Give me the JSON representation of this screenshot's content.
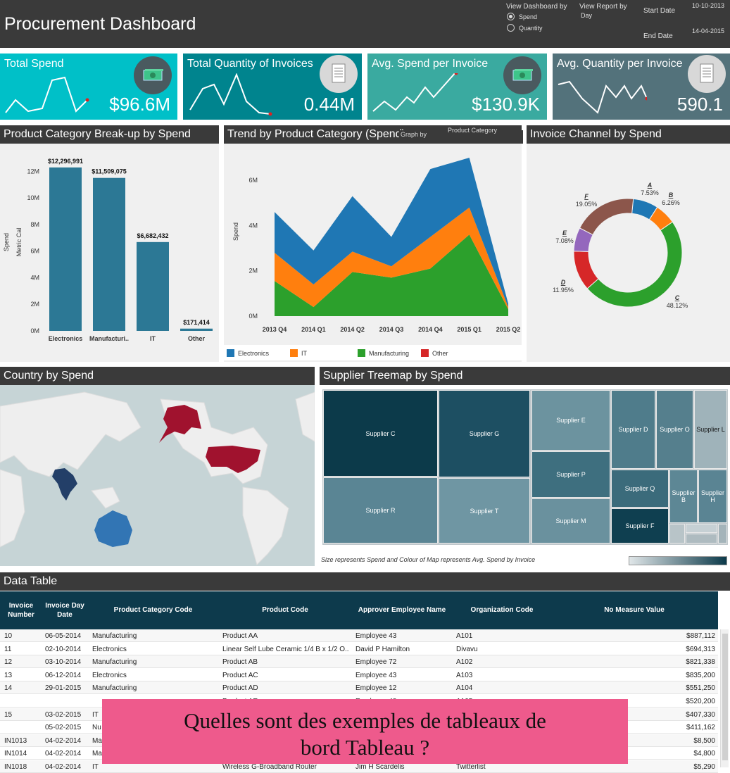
{
  "header": {
    "title": "Procurement Dashboard",
    "view_dashboard_label": "View Dashboard by",
    "option_spend": "Spend",
    "option_quantity": "Quantity",
    "view_report_label": "View Report by",
    "view_report_value": "Day",
    "start_date_label": "Start Date",
    "start_date_value": "10-10-2013",
    "end_date_label": "End Date",
    "end_date_value": "14-04-2015"
  },
  "kpis": [
    {
      "title": "Total Spend",
      "value": "$96.6M",
      "color": "#00c0c8",
      "icon": "money-icon"
    },
    {
      "title": "Total Quantity of Invoices",
      "value": "0.44M",
      "color": "#00848e",
      "icon": "invoice-icon"
    },
    {
      "title": "Avg. Spend per Invoice",
      "value": "$130.9K",
      "color": "#3aaaa0",
      "icon": "money-icon"
    },
    {
      "title": "Avg. Quantity per Invoice",
      "value": "590.1",
      "color": "#53727b",
      "icon": "invoice-icon"
    }
  ],
  "sections": {
    "category": "Product Category Break-up by Spend",
    "trend": "Trend by Product Category (Spend)",
    "trend_graph_by": "Graph by",
    "trend_graph_value": "Product Category",
    "channel": "Invoice Channel by Spend",
    "country": "Country by Spend",
    "supplier": "Supplier Treemap by Spend",
    "supplier_note": "Size represents Spend and Colour of Map represents Avg. Spend by Invoice",
    "data_table": "Data Table"
  },
  "chart_data": [
    {
      "type": "bar",
      "ylabel": "Spend",
      "ylabel2": "Metric Cal",
      "categories": [
        "Electronics",
        "Manufacturi..",
        "IT",
        "Other"
      ],
      "values": [
        12296991,
        11509075,
        6682432,
        171414
      ],
      "value_labels": [
        "$12,296,991",
        "$11,509,075",
        "$6,682,432",
        "$171,414"
      ],
      "yticks": [
        "0M",
        "2M",
        "4M",
        "6M",
        "8M",
        "10M",
        "12M"
      ],
      "ylim": [
        0,
        12500000
      ],
      "color": "#2c7895"
    },
    {
      "type": "area",
      "ylabel": "Spend",
      "categories": [
        "2013 Q4",
        "2014 Q1",
        "2014 Q2",
        "2014 Q3",
        "2014 Q4",
        "2015 Q1",
        "2015 Q2"
      ],
      "yticks": [
        "0M",
        "2M",
        "4M",
        "6M"
      ],
      "ylim": [
        0,
        7000000
      ],
      "stacked": true,
      "series": [
        {
          "name": "Manufacturing",
          "color": "#2ca02c",
          "values": [
            1550000,
            400000,
            1950000,
            1700000,
            2100000,
            3600000,
            300000
          ]
        },
        {
          "name": "IT",
          "color": "#ff7f0e",
          "values": [
            1250000,
            1000000,
            900000,
            500000,
            1400000,
            1200000,
            100000
          ]
        },
        {
          "name": "Electronics",
          "color": "#1f77b4",
          "values": [
            1800000,
            1500000,
            2450000,
            1300000,
            3000000,
            2200000,
            150000
          ]
        },
        {
          "name": "Other",
          "color": "#d62728",
          "values": [
            0,
            0,
            0,
            0,
            0,
            0,
            0
          ]
        }
      ],
      "legend": [
        "Electronics",
        "IT",
        "Manufacturing",
        "Other"
      ],
      "legend_colors": [
        "#1f77b4",
        "#ff7f0e",
        "#2ca02c",
        "#d62728"
      ]
    },
    {
      "type": "pie",
      "donut": true,
      "slices": [
        {
          "label": "A",
          "pct": "7.53%",
          "value": 7.53,
          "color": "#1f77b4"
        },
        {
          "label": "B",
          "pct": "6.26%",
          "value": 6.26,
          "color": "#ff7f0e"
        },
        {
          "label": "C",
          "pct": "48.12%",
          "value": 48.12,
          "color": "#2ca02c"
        },
        {
          "label": "D",
          "pct": "11.95%",
          "value": 11.95,
          "color": "#d62728"
        },
        {
          "label": "E",
          "pct": "7.08%",
          "value": 7.08,
          "color": "#9467bd"
        },
        {
          "label": "F",
          "pct": "19.05%",
          "value": 19.05,
          "color": "#8c564b"
        }
      ]
    }
  ],
  "treemap": [
    {
      "name": "Supplier C",
      "color": "#0c3a4a"
    },
    {
      "name": "Supplier G",
      "color": "#1d4f62"
    },
    {
      "name": "Supplier E",
      "color": "#6c939f"
    },
    {
      "name": "Supplier D",
      "color": "#4f7c8b"
    },
    {
      "name": "Supplier O",
      "color": "#557f8d"
    },
    {
      "name": "Supplier L",
      "color": "#9fb3ba"
    },
    {
      "name": "Supplier P",
      "color": "#3e6f7f"
    },
    {
      "name": "Supplier Q",
      "color": "#3b6b7b"
    },
    {
      "name": "Supplier R",
      "color": "#5a8594"
    },
    {
      "name": "Supplier T",
      "color": "#6f96a3"
    },
    {
      "name": "Supplier M",
      "color": "#6a919e"
    },
    {
      "name": "Supplier F",
      "color": "#0f3f50"
    },
    {
      "name": "Supplier B",
      "color": "#5d8795"
    },
    {
      "name": "Supplier H",
      "color": "#5a8493"
    }
  ],
  "table": {
    "headers": [
      "Invoice Number",
      "Invoice Day Date",
      "Product Category Code",
      "Product Code",
      "Approver Employee Name",
      "Organization Code",
      "No Measure Value"
    ],
    "rows": [
      [
        "10",
        "06-05-2014",
        "Manufacturing",
        "Product AA",
        "Employee 43",
        "A101",
        "$887,112"
      ],
      [
        "11",
        "02-10-2014",
        "Electronics",
        "Linear Self Lube Ceramic 1/4  B x 1/2  O..",
        "David P Hamilton",
        "Divavu",
        "$694,313"
      ],
      [
        "12",
        "03-10-2014",
        "Manufacturing",
        "Product AB",
        "Employee 72",
        "A102",
        "$821,338"
      ],
      [
        "13",
        "06-12-2014",
        "Electronics",
        "Product AC",
        "Employee 43",
        "A103",
        "$835,200"
      ],
      [
        "14",
        "29-01-2015",
        "Manufacturing",
        "Product AD",
        "Employee 12",
        "A104",
        "$551,250"
      ],
      [
        "",
        "",
        "",
        "Product AE",
        "Employee 48",
        "A105",
        "$520,200"
      ],
      [
        "15",
        "03-02-2015",
        "IT",
        "",
        "",
        "",
        "$407,330"
      ],
      [
        "",
        "05-02-2015",
        "Nu",
        "",
        "",
        "",
        "$411,162"
      ],
      [
        "IN1013",
        "04-02-2014",
        "Ma",
        "",
        "",
        "",
        "$8,500"
      ],
      [
        "IN1014",
        "04-02-2014",
        "Ma",
        "",
        "",
        "",
        "$4,800"
      ],
      [
        "IN1018",
        "04-02-2014",
        "IT",
        "Wireless G-Broadband Router",
        "Jim H Scardelis",
        "Twitterlist",
        "$5,290"
      ]
    ]
  },
  "banner": {
    "line1": "Quelles sont des exemples de tableaux de",
    "line2": "bord Tableau ?"
  }
}
